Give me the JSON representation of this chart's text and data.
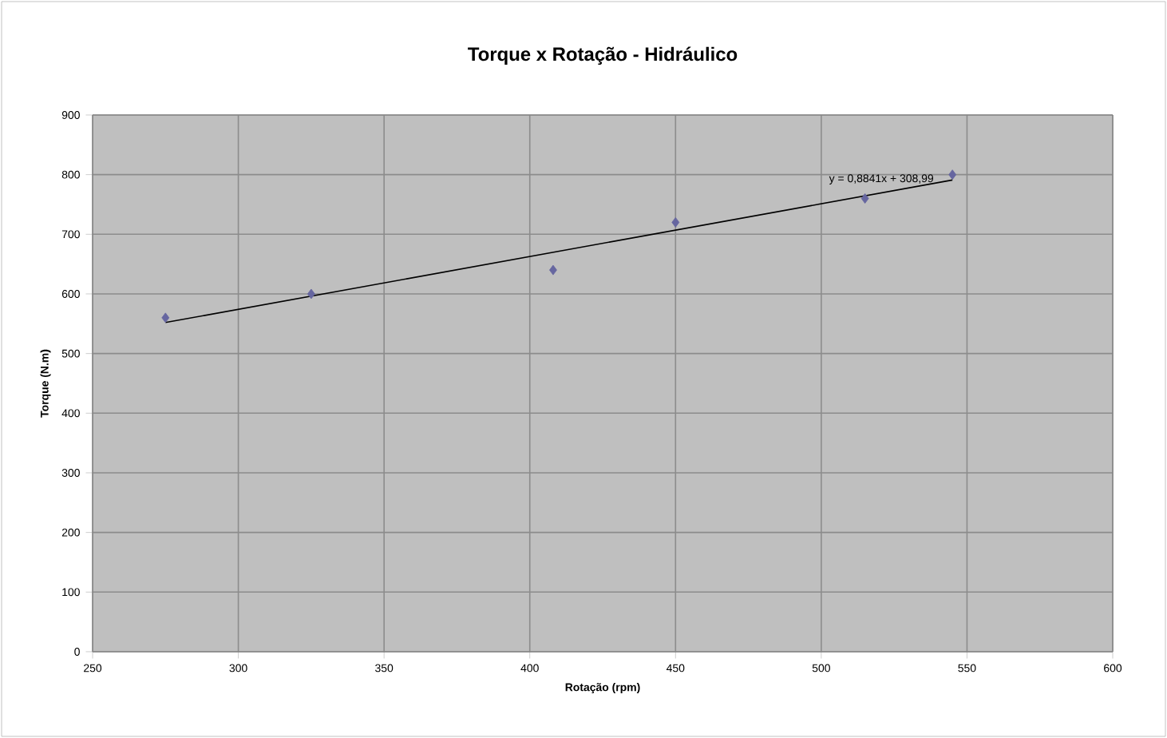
{
  "chart_data": {
    "type": "scatter",
    "title": "Torque x Rotação - Hidráulico",
    "xlabel": "Rotação (rpm)",
    "ylabel": "Torque (N.m)",
    "x": [
      275,
      325,
      408,
      450,
      515,
      545
    ],
    "series": [
      {
        "color": "#6666a0",
        "marker": "diamond",
        "values": [
          560,
          600,
          640,
          720,
          760,
          800
        ]
      },
      {
        "type": "line",
        "color": "#000000",
        "marker": "none",
        "x": [
          275,
          545
        ],
        "values": [
          552,
          791
        ]
      }
    ],
    "annotations": [
      "y = 0,8841x + 308,99"
    ],
    "xlim": [
      250,
      600
    ],
    "xticks": [
      250,
      300,
      350,
      400,
      450,
      500,
      550,
      600
    ],
    "ylim": [
      0,
      900
    ],
    "yticks": [
      0,
      100,
      200,
      300,
      400,
      500,
      600,
      700,
      800,
      900
    ],
    "grid": true
  }
}
